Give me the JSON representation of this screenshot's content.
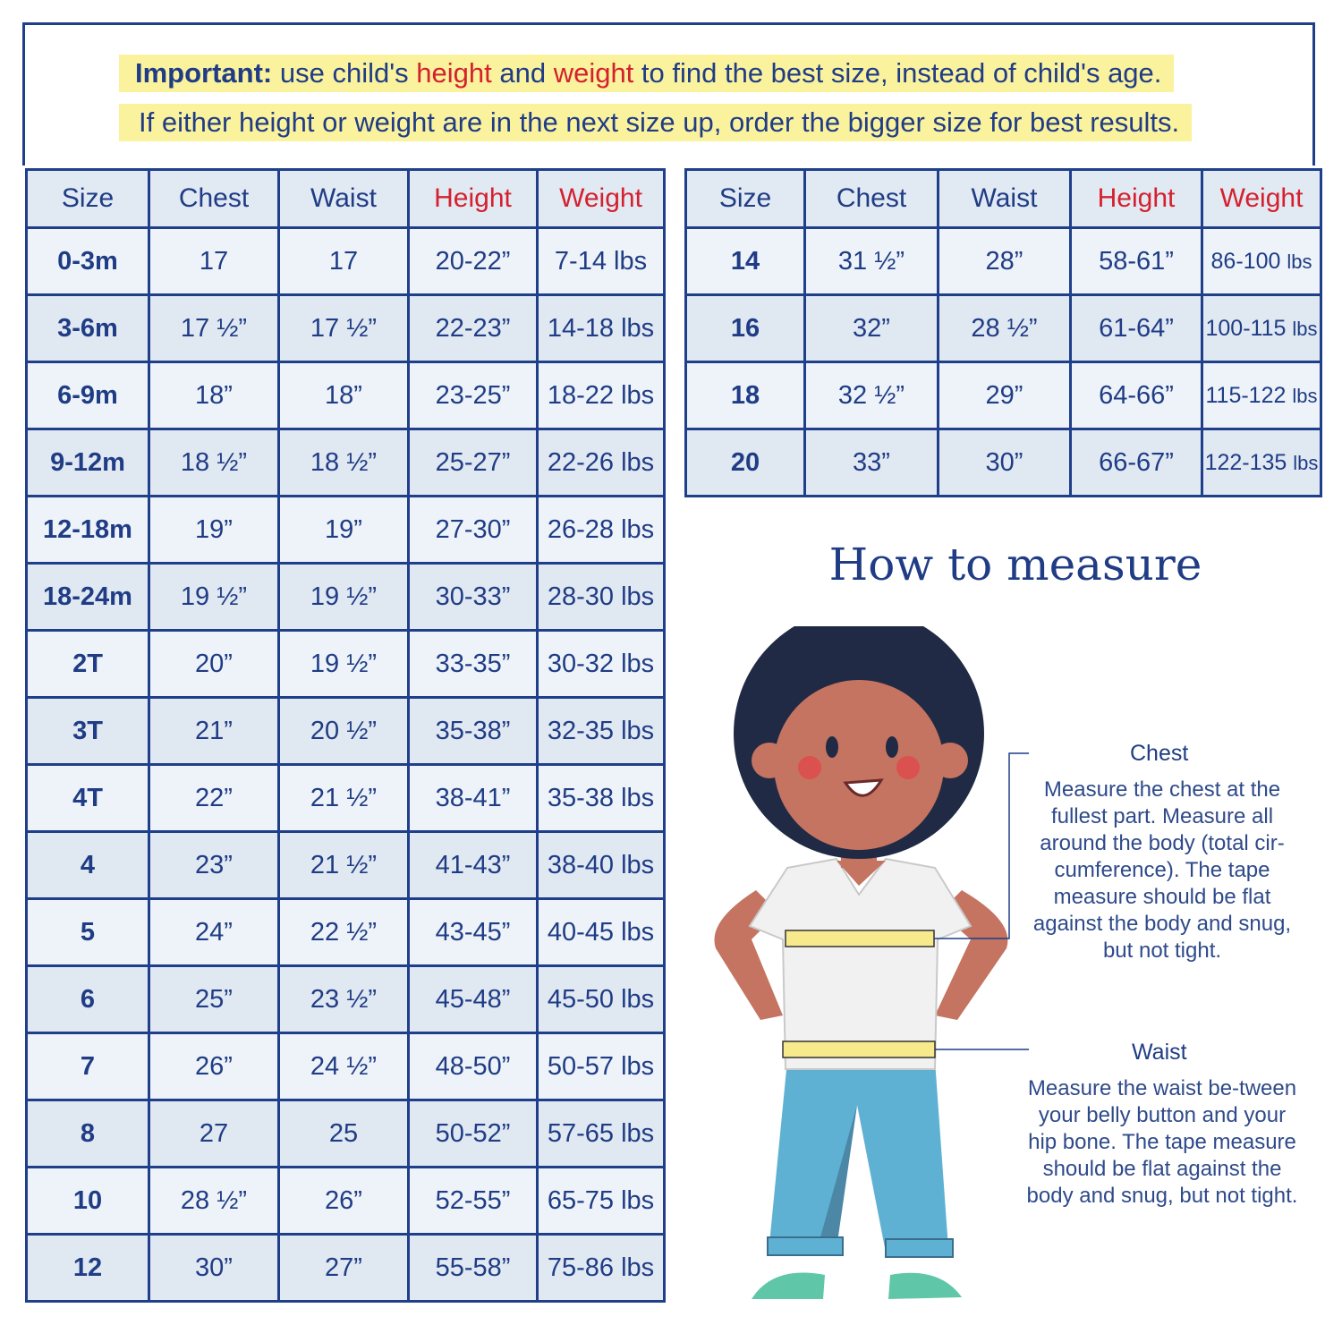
{
  "notice": {
    "line1": {
      "bold": "Important:",
      "t1": " use child's ",
      "h": "height",
      "t2": " and ",
      "w": "weight",
      "t3": " to find the best size, instead of child's age."
    },
    "line2": "If either height or weight are in the next size up, order the bigger size for best results."
  },
  "colors": {
    "border": "#1f3f8a",
    "text": "#1f3c85",
    "accent": "#d4212d",
    "highlight": "#fbf29e"
  },
  "headers": [
    "Size",
    "Chest",
    "Waist",
    "Height",
    "Weight"
  ],
  "left_table": [
    [
      "0-3m",
      "17",
      "17",
      "20-22”",
      "7-14 lbs"
    ],
    [
      "3-6m",
      "17 ½”",
      "17 ½”",
      "22-23”",
      "14-18 lbs"
    ],
    [
      "6-9m",
      "18”",
      "18”",
      "23-25”",
      "18-22 lbs"
    ],
    [
      "9-12m",
      "18 ½”",
      "18 ½”",
      "25-27”",
      "22-26 lbs"
    ],
    [
      "12-18m",
      "19”",
      "19”",
      "27-30”",
      "26-28 lbs"
    ],
    [
      "18-24m",
      "19 ½”",
      "19 ½”",
      "30-33”",
      "28-30 lbs"
    ],
    [
      "2T",
      "20”",
      "19 ½”",
      "33-35”",
      "30-32 lbs"
    ],
    [
      "3T",
      "21”",
      "20 ½”",
      "35-38”",
      "32-35 lbs"
    ],
    [
      "4T",
      "22”",
      "21 ½”",
      "38-41”",
      "35-38 lbs"
    ],
    [
      "4",
      "23”",
      "21 ½”",
      "41-43”",
      "38-40 lbs"
    ],
    [
      "5",
      "24”",
      "22 ½”",
      "43-45”",
      "40-45 lbs"
    ],
    [
      "6",
      "25”",
      "23 ½”",
      "45-48”",
      "45-50 lbs"
    ],
    [
      "7",
      "26”",
      "24 ½”",
      "48-50”",
      "50-57 lbs"
    ],
    [
      "8",
      "27",
      "25",
      "50-52”",
      "57-65 lbs"
    ],
    [
      "10",
      "28 ½”",
      "26”",
      "52-55”",
      "65-75 lbs"
    ],
    [
      "12",
      "30”",
      "27”",
      "55-58”",
      "75-86 lbs"
    ]
  ],
  "right_table": [
    [
      "14",
      "31 ½”",
      "28”",
      "58-61”",
      "86-100",
      "lbs"
    ],
    [
      "16",
      "32”",
      "28 ½”",
      "61-64”",
      "100-115",
      "lbs"
    ],
    [
      "18",
      "32 ½”",
      "29”",
      "64-66”",
      "115-122",
      "lbs"
    ],
    [
      "20",
      "33”",
      "30”",
      "66-67”",
      "122-135",
      "lbs"
    ]
  ],
  "measure": {
    "title": "How to measure",
    "chest_label": "Chest",
    "chest_text": "Measure the chest at the fullest part. Measure all around the body (total cir-cumference). The tape measure should be flat against the body and snug, but not tight.",
    "waist_label": "Waist",
    "waist_text": "Measure the waist be-tween your belly button and your hip bone. The tape measure should be flat against the body and snug, but not tight."
  }
}
